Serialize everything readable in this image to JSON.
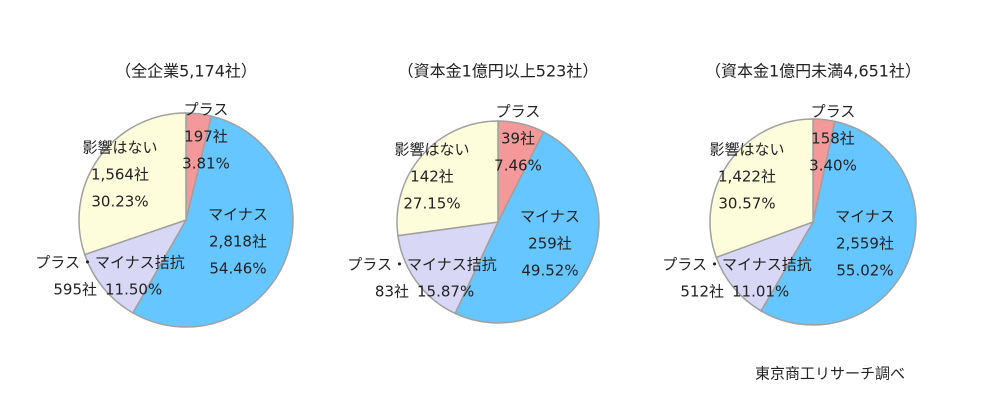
{
  "chart_data": [
    {
      "type": "pie",
      "title": "（全企業5,174社）",
      "categories": [
        "プラス",
        "マイナス",
        "プラス・マイナス拮抗",
        "影響はない"
      ],
      "values": [
        3.81,
        54.46,
        11.5,
        30.23
      ],
      "value_labels": [
        "3.81%",
        "54.46%",
        "11.50%",
        "30.23%"
      ],
      "count_labels": [
        "197社",
        "2,818社",
        "595社",
        "1,564社"
      ],
      "colors": [
        "#f4999a",
        "#66c6ff",
        "#d8d8f6",
        "#fdfddc"
      ]
    },
    {
      "type": "pie",
      "title": "（資本金1億円以上523社）",
      "categories": [
        "プラス",
        "マイナス",
        "プラス・マイナス拮抗",
        "影響はない"
      ],
      "values": [
        7.46,
        49.52,
        15.87,
        27.15
      ],
      "value_labels": [
        "7.46%",
        "49.52%",
        "15.87%",
        "27.15%"
      ],
      "count_labels": [
        "39社",
        "259社",
        "83社",
        "142社"
      ],
      "colors": [
        "#f4999a",
        "#66c6ff",
        "#d8d8f6",
        "#fdfddc"
      ]
    },
    {
      "type": "pie",
      "title": "（資本金1億円未満4,651社）",
      "categories": [
        "プラス",
        "マイナス",
        "プラス・マイナス拮抗",
        "影響はない"
      ],
      "values": [
        3.4,
        55.02,
        11.01,
        30.57
      ],
      "value_labels": [
        "3.40%",
        "55.02%",
        "11.01%",
        "30.57%"
      ],
      "count_labels": [
        "158社",
        "2,559社",
        "512社",
        "1,422社"
      ],
      "colors": [
        "#f4999a",
        "#66c6ff",
        "#d8d8f6",
        "#fdfddc"
      ]
    }
  ],
  "source": "東京商工リサーチ調べ"
}
